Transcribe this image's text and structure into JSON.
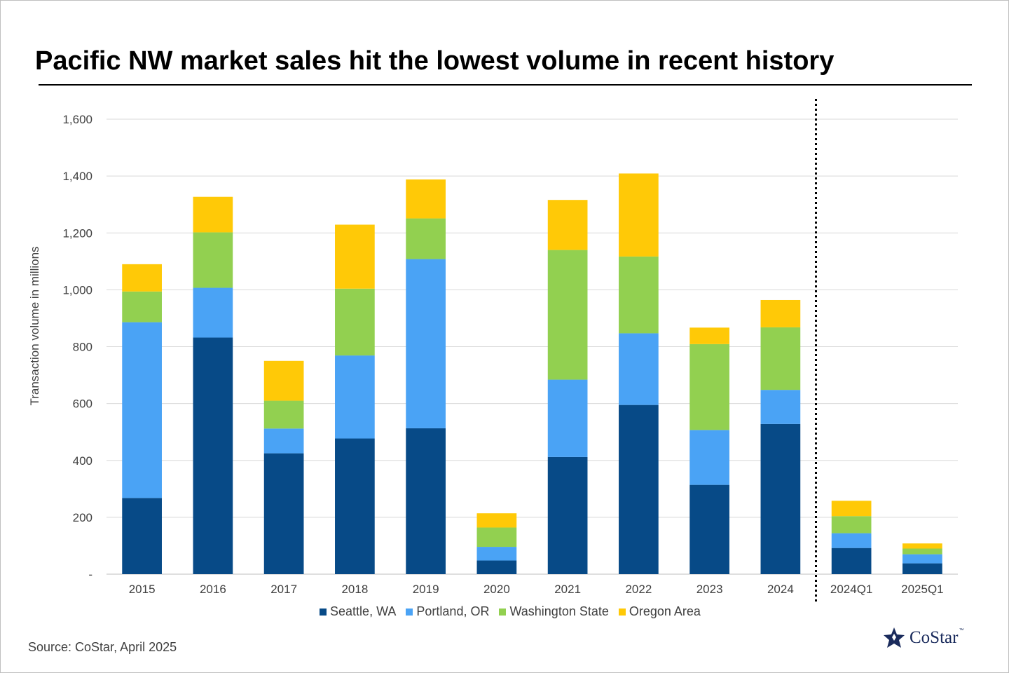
{
  "title": "Pacific NW market sales hit the lowest volume in recent history",
  "source": "Source: CoStar, April 2025",
  "logo": {
    "text": "CoStar",
    "tm": "™"
  },
  "chart_data": {
    "type": "bar",
    "stacked": true,
    "categories": [
      "2015",
      "2016",
      "2017",
      "2018",
      "2019",
      "2020",
      "2021",
      "2022",
      "2023",
      "2024",
      "2024Q1",
      "2025Q1"
    ],
    "ylabel": "Transaction volume in millions",
    "xlabel": "",
    "ylim": [
      0,
      1600
    ],
    "yticks": [
      0,
      200,
      400,
      600,
      800,
      1000,
      1200,
      1400,
      1600
    ],
    "ytick_labels": [
      "-",
      "200",
      "400",
      "600",
      "800",
      "1,000",
      "1,200",
      "1,400",
      "1,600"
    ],
    "grid": true,
    "legend_position": "bottom",
    "divider_after_category": "2024",
    "series": [
      {
        "name": "Seattle, WA",
        "color": "#074a87",
        "values": [
          268,
          832,
          425,
          477,
          513,
          48,
          412,
          595,
          314,
          528,
          92,
          38
        ]
      },
      {
        "name": "Portland, OR",
        "color": "#4aa3f5",
        "values": [
          618,
          175,
          87,
          292,
          595,
          48,
          272,
          252,
          193,
          120,
          52,
          32
        ]
      },
      {
        "name": "Washington State",
        "color": "#92d050",
        "values": [
          108,
          195,
          98,
          235,
          143,
          68,
          456,
          270,
          302,
          220,
          60,
          20
        ]
      },
      {
        "name": "Oregon Area",
        "color": "#ffc907",
        "values": [
          96,
          125,
          140,
          225,
          137,
          50,
          176,
          292,
          58,
          96,
          54,
          18
        ]
      }
    ]
  }
}
